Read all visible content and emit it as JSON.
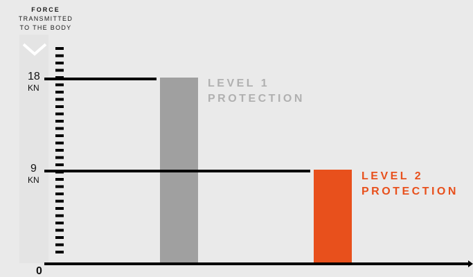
{
  "header": {
    "line1": "FORCE",
    "line2": "TRANSMITTED",
    "line3": "TO THE BODY"
  },
  "colors": {
    "background": "#eaeaea",
    "axis": "#000000",
    "level1": "#a0a0a0",
    "level2": "#e8501c",
    "level1_label": "#b0b0b0",
    "level2_label": "#e8501c"
  },
  "icons": [
    "chevron-down-icon",
    "arrow-right-icon"
  ],
  "chart_data": {
    "type": "bar",
    "categories": [
      "LEVEL 1 PROTECTION",
      "LEVEL 2 PROTECTION"
    ],
    "values": [
      18,
      9
    ],
    "unit": "KN",
    "ylim": [
      0,
      18
    ],
    "yticks": [
      {
        "value": 18,
        "label": "18",
        "unit": "KN"
      },
      {
        "value": 9,
        "label": "9",
        "unit": "KN"
      },
      {
        "value": 0,
        "label": "0",
        "unit": ""
      }
    ],
    "grid": false,
    "labels": [
      {
        "line1": "LEVEL 1",
        "line2": "PROTECTION"
      },
      {
        "line1": "LEVEL 2",
        "line2": "PROTECTION"
      }
    ]
  }
}
